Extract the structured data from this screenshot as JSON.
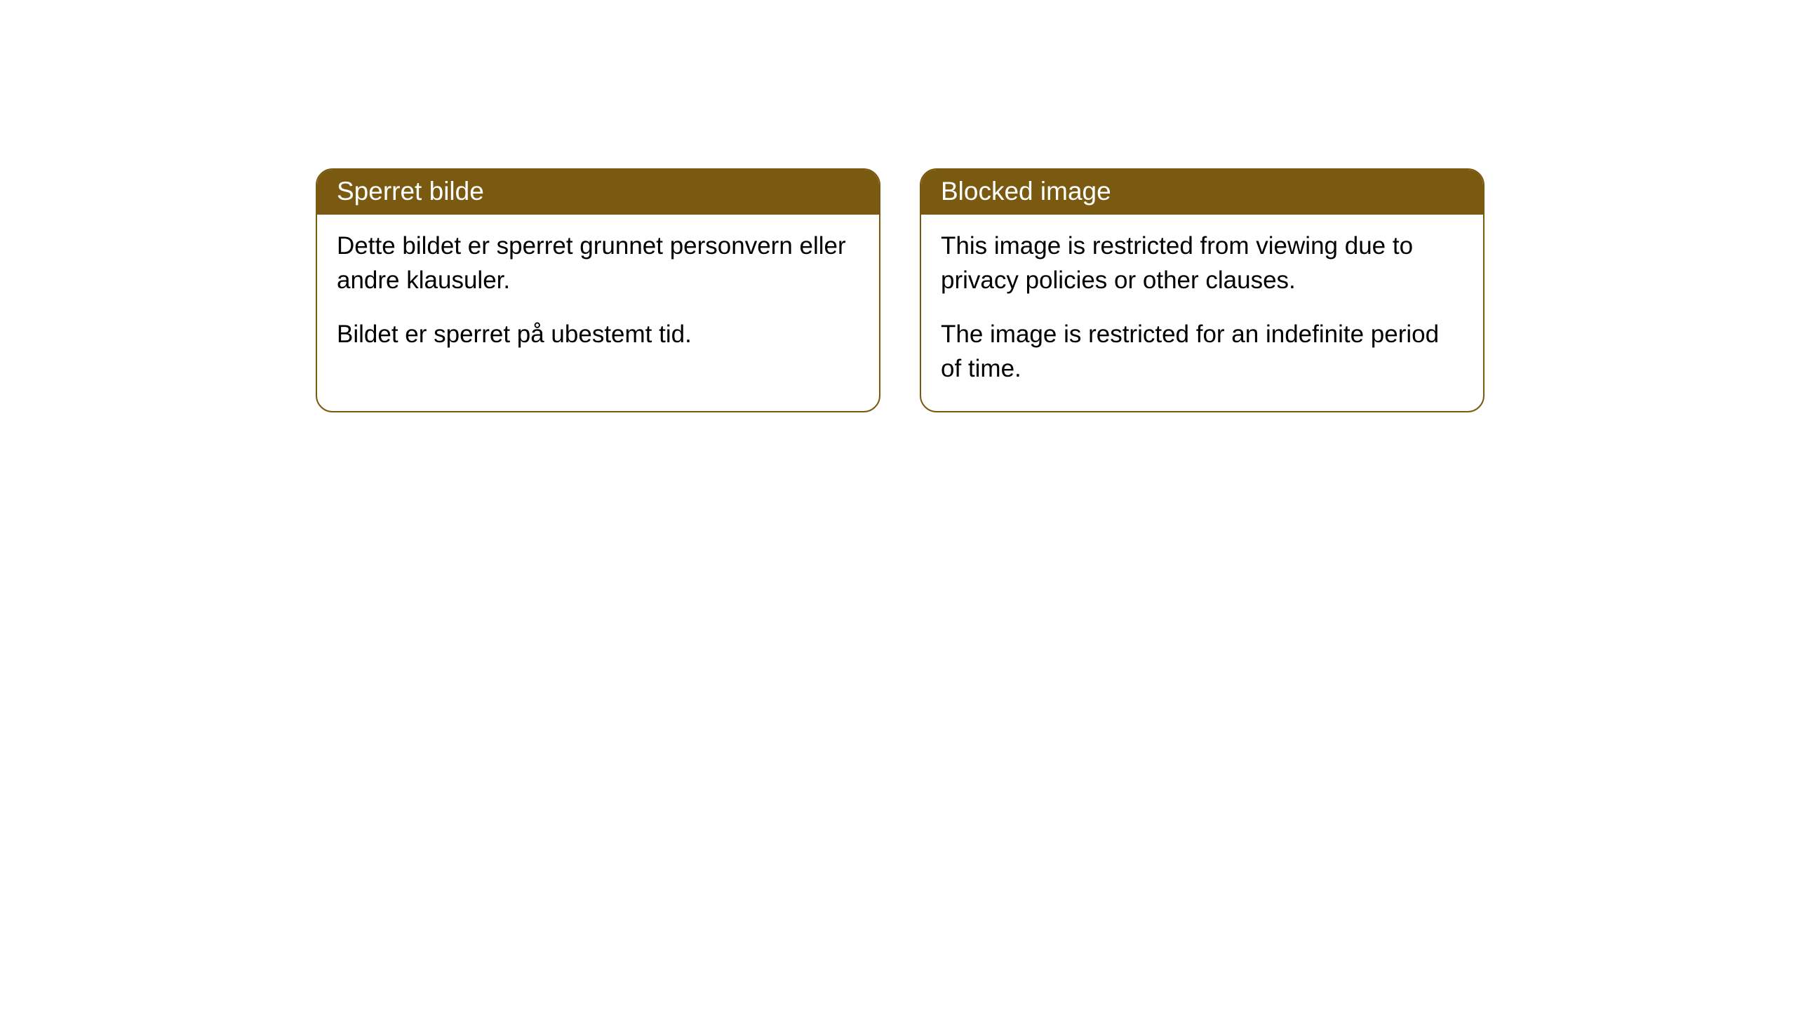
{
  "cards": [
    {
      "header": "Sperret bilde",
      "paragraph1": "Dette bildet er sperret grunnet personvern eller andre klausuler.",
      "paragraph2": "Bildet er sperret på ubestemt tid."
    },
    {
      "header": "Blocked image",
      "paragraph1": "This image is restricted from viewing due to privacy policies or other clauses.",
      "paragraph2": "The image is restricted for an indefinite period of time."
    }
  ],
  "styling": {
    "header_bg_color": "#7a5a10",
    "header_text_color": "#ffffff",
    "border_color": "#7a5a10",
    "body_bg_color": "#ffffff",
    "body_text_color": "#000000",
    "border_radius": "24px",
    "header_fontsize": 37,
    "body_fontsize": 35
  }
}
